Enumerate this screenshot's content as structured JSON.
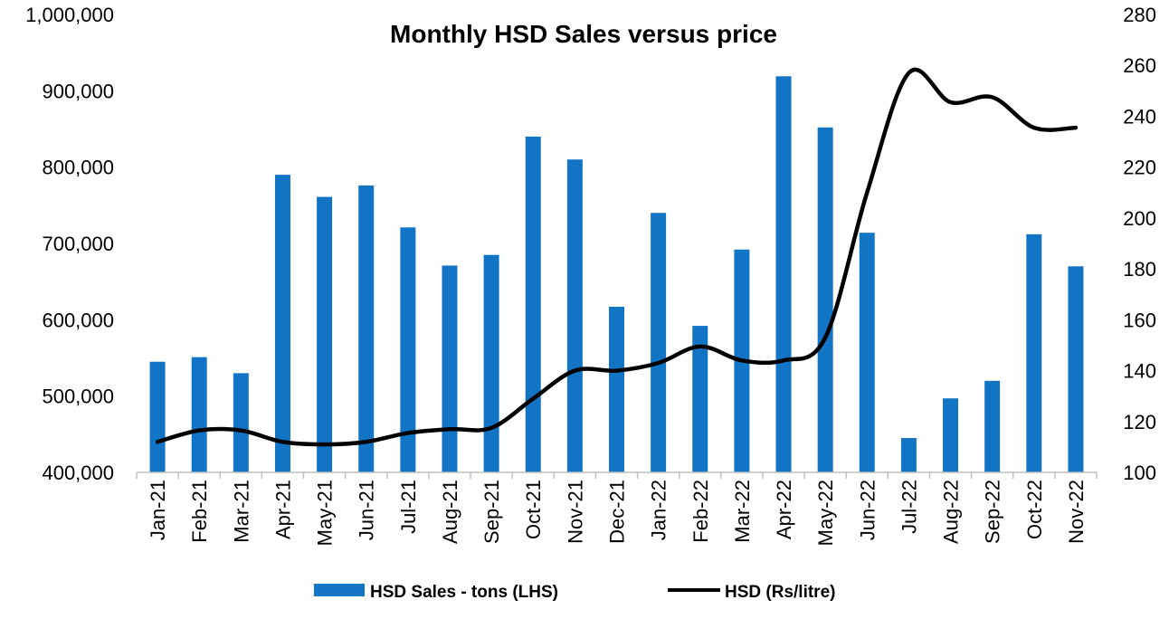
{
  "chart_data": {
    "type": "bar",
    "title": "Monthly HSD Sales versus price",
    "categories": [
      "Jan-21",
      "Feb-21",
      "Mar-21",
      "Apr-21",
      "May-21",
      "Jun-21",
      "Jul-21",
      "Aug-21",
      "Sep-21",
      "Oct-21",
      "Nov-21",
      "Dec-21",
      "Jan-22",
      "Feb-22",
      "Mar-22",
      "Apr-22",
      "May-22",
      "Jun-22",
      "Jul-22",
      "Aug-22",
      "Sep-22",
      "Oct-22",
      "Nov-22"
    ],
    "series": [
      {
        "name": "HSD Sales - tons (LHS)",
        "type": "bar",
        "axis": "left",
        "color": "#1274C5",
        "values": [
          545000,
          551000,
          530000,
          790000,
          761000,
          776000,
          721000,
          671000,
          685000,
          840000,
          810000,
          617000,
          740000,
          592000,
          692000,
          919000,
          852000,
          714000,
          445000,
          497000,
          520000,
          712000,
          670000
        ]
      },
      {
        "name": "HSD (Rs/litre)",
        "type": "line",
        "axis": "right",
        "color": "#000000",
        "values": [
          112,
          116.5,
          116.5,
          112,
          111,
          112,
          115.5,
          117,
          117.5,
          129,
          140,
          140,
          143,
          149.5,
          144,
          144,
          153,
          210,
          257,
          245.5,
          247.5,
          235.5,
          235.5
        ]
      }
    ],
    "y_left": {
      "min": 400000,
      "max": 1000000,
      "ticks": [
        "400,000",
        "500,000",
        "600,000",
        "700,000",
        "800,000",
        "900,000",
        "1,000,000"
      ]
    },
    "y_right": {
      "min": 100,
      "max": 280,
      "ticks": [
        "100",
        "120",
        "140",
        "160",
        "180",
        "200",
        "220",
        "240",
        "260",
        "280"
      ]
    },
    "grid": false,
    "legend_position": "bottom"
  }
}
